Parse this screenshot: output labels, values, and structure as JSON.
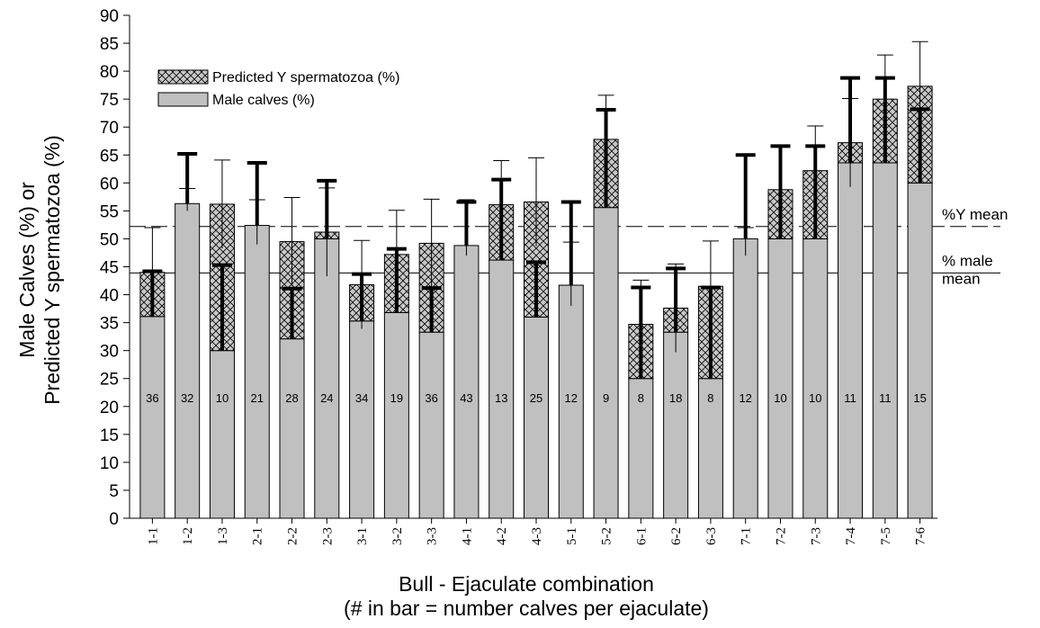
{
  "chart_data": {
    "type": "bar",
    "ylabel_line1": "Male Calves (%) or",
    "ylabel_line2": "Predicted Y spermatozoa (%)",
    "xlabel_line1": "Bull - Ejaculate combination",
    "xlabel_line2": "(# in bar = number calves per ejaculate)",
    "ylim": [
      0,
      90
    ],
    "yticks": [
      0,
      5,
      10,
      15,
      20,
      25,
      30,
      35,
      40,
      45,
      50,
      55,
      60,
      65,
      70,
      75,
      80,
      85,
      90
    ],
    "grid": false,
    "legend_position": "top-left",
    "legend": [
      {
        "label": "Predicted Y  spermatozoa (%)",
        "pattern": "crosshatch"
      },
      {
        "label": "Male calves (%)",
        "pattern": "solid"
      }
    ],
    "colors": {
      "male": "#c0c0c0",
      "hatch_bg": "#c8c8c8",
      "hatch_line": "#000000"
    },
    "categories": [
      "1-1",
      "1-2",
      "1-3",
      "2-1",
      "2-2",
      "2-3",
      "3-1",
      "3-2",
      "3-3",
      "4-1",
      "4-2",
      "4-3",
      "5-1",
      "5-2",
      "6-1",
      "6-2",
      "6-3",
      "7-1",
      "7-2",
      "7-3",
      "7-4",
      "7-5",
      "7-6"
    ],
    "series": [
      {
        "name": "Male calves (%)",
        "values": [
          36.1,
          56.3,
          30.0,
          52.4,
          32.1,
          50.0,
          35.3,
          36.8,
          33.3,
          48.8,
          46.2,
          36.0,
          41.7,
          55.6,
          25.0,
          33.3,
          25.0,
          50.0,
          50.0,
          50.0,
          63.6,
          63.6,
          60.0
        ]
      },
      {
        "name": "Predicted Y  spermatozoa (%)",
        "values": [
          44.0,
          55.0,
          56.2,
          49.0,
          49.5,
          51.2,
          41.8,
          47.2,
          49.2,
          47.0,
          56.1,
          56.6,
          38.0,
          67.8,
          34.7,
          37.6,
          41.5,
          47.0,
          58.8,
          62.2,
          67.2,
          75.0,
          77.3
        ]
      }
    ],
    "male_error_upper": [
      44.2,
      65.2,
      45.3,
      63.6,
      41.1,
      60.4,
      43.7,
      48.2,
      41.2,
      56.6,
      60.6,
      45.8,
      56.6,
      73.1,
      41.3,
      44.7,
      41.3,
      65.0,
      66.6,
      66.6,
      78.8,
      78.8,
      73.2
    ],
    "predicted_error_upper": [
      52.0,
      59.0,
      64.1,
      57.0,
      57.4,
      59.1,
      49.7,
      55.1,
      57.1,
      57.0,
      64.0,
      64.5,
      49.4,
      75.7,
      42.6,
      45.5,
      49.6,
      52.0,
      66.7,
      70.2,
      75.1,
      82.9,
      85.3
    ],
    "calves_per_ejaculate": [
      36,
      32,
      10,
      21,
      28,
      24,
      34,
      19,
      36,
      43,
      13,
      25,
      12,
      9,
      8,
      18,
      8,
      12,
      10,
      10,
      11,
      11,
      15
    ],
    "reference_lines": [
      {
        "label": "%Y mean",
        "value": 52.2,
        "style": "dashed"
      },
      {
        "label_line1": "% male",
        "label_line2": "mean",
        "value": 43.9,
        "style": "solid"
      }
    ]
  }
}
